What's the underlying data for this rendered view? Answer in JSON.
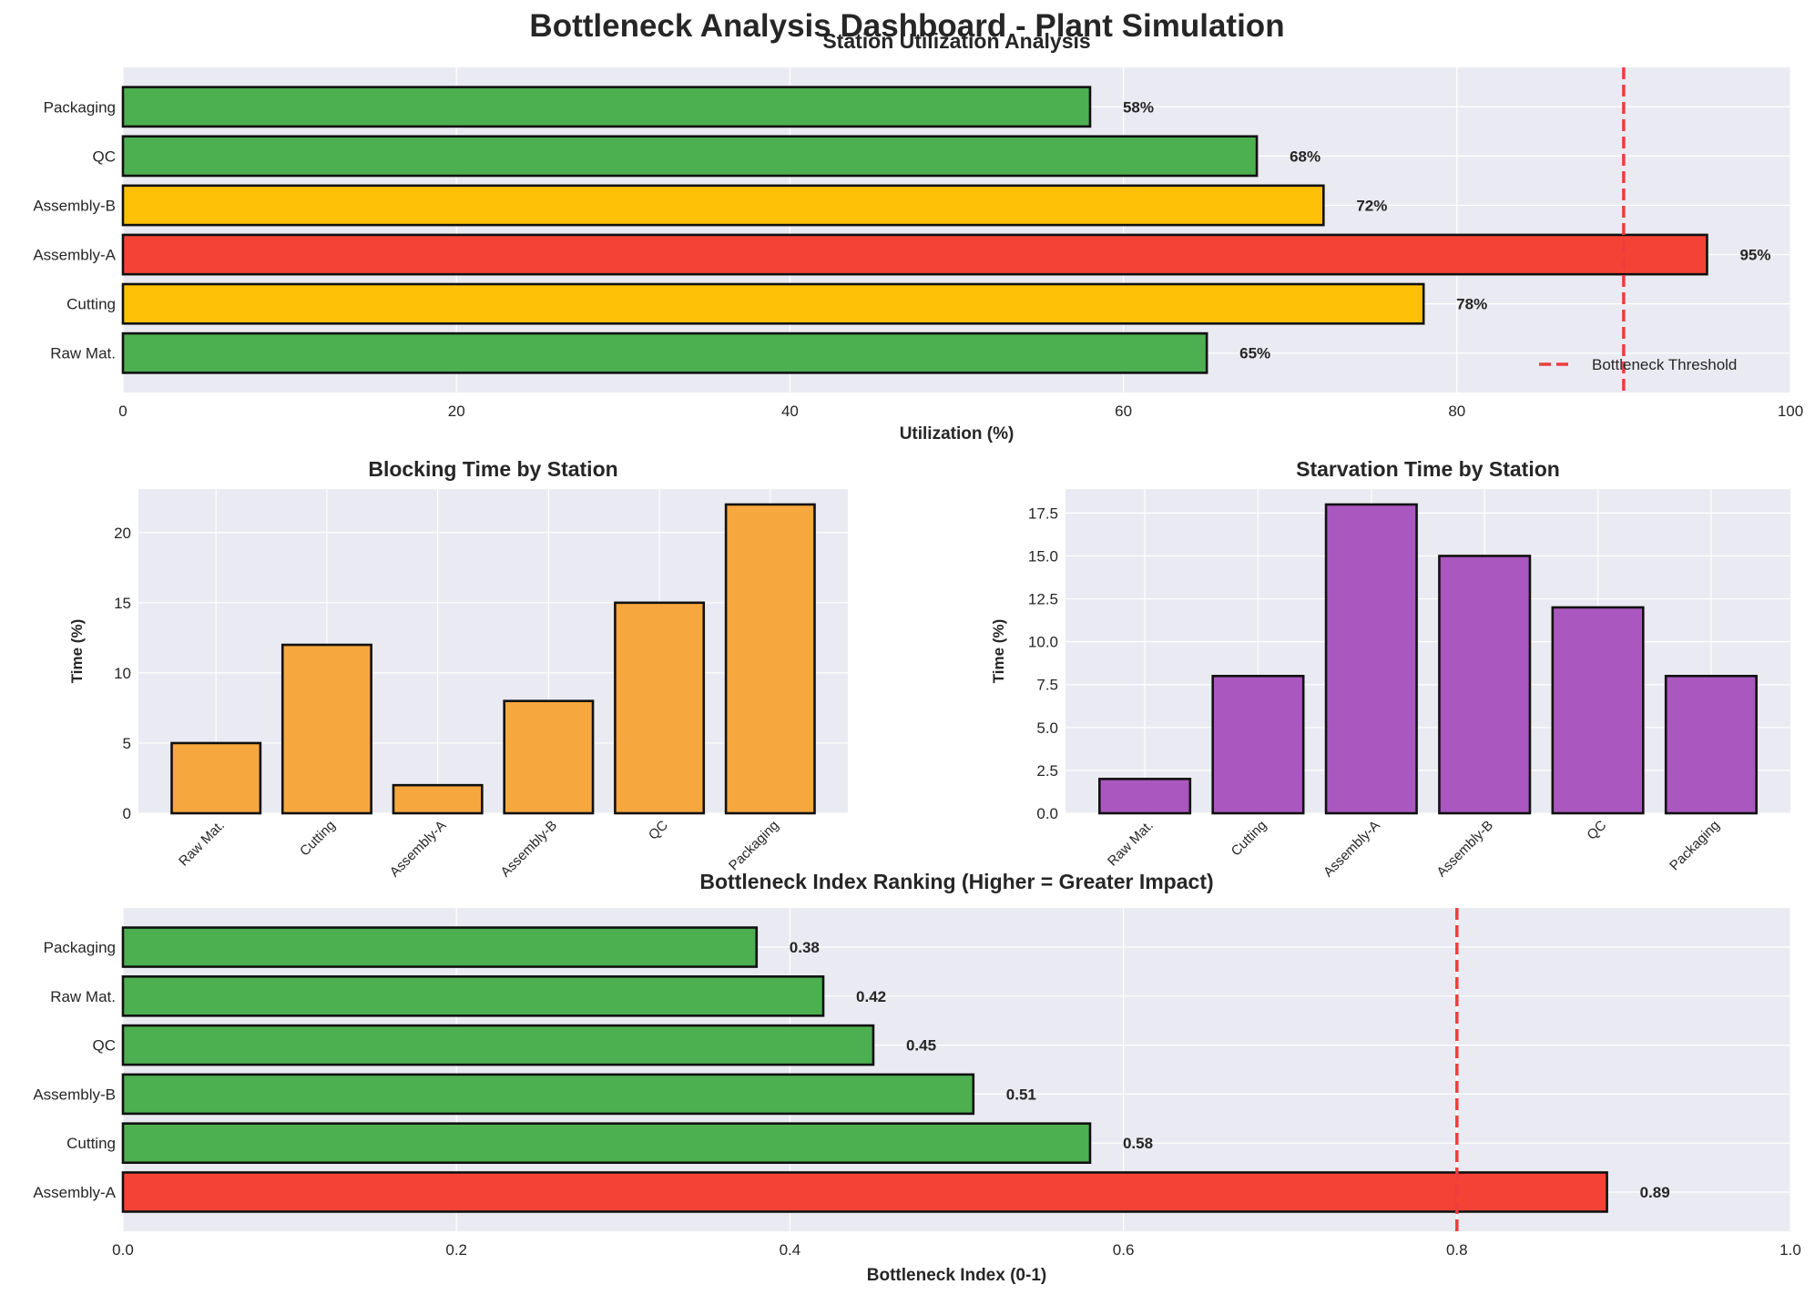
{
  "page": {
    "title": "Bottleneck Analysis Dashboard - Plant Simulation"
  },
  "colors": {
    "background": "#eaeaf2",
    "grid": "#ffffff",
    "ok": "#4caf50",
    "warning": "#ffc107",
    "critical": "#f44336",
    "blocking": "#f7a434",
    "starvation": "#a64fbd",
    "threshold_line": "#f03c3c",
    "bar_edge": "#111111"
  },
  "chart_data": [
    {
      "id": "utilization",
      "type": "bar",
      "orientation": "horizontal",
      "title": "Station Utilization Analysis",
      "xlabel": "Utilization (%)",
      "ylabel": "",
      "categories": [
        "Raw Mat.",
        "Cutting",
        "Assembly-A",
        "Assembly-B",
        "QC",
        "Packaging"
      ],
      "values": [
        65,
        78,
        95,
        72,
        68,
        58
      ],
      "value_labels": [
        "65%",
        "78%",
        "95%",
        "72%",
        "68%",
        "58%"
      ],
      "bar_colors": [
        "#4caf50",
        "#ffc107",
        "#f44336",
        "#ffc107",
        "#4caf50",
        "#4caf50"
      ],
      "xlim": [
        0,
        100
      ],
      "xticks": [
        0,
        20,
        40,
        60,
        80,
        100
      ],
      "xtick_labels": [
        "0",
        "20",
        "40",
        "60",
        "80",
        "100"
      ],
      "threshold": {
        "value": 90,
        "label": "Bottleneck Threshold"
      },
      "legend": {
        "position": "lower-right",
        "entries": [
          "Bottleneck Threshold"
        ]
      },
      "grid": true
    },
    {
      "id": "blocking",
      "type": "bar",
      "orientation": "vertical",
      "title": "Blocking Time by Station",
      "xlabel": "",
      "ylabel": "Time (%)",
      "categories": [
        "Raw Mat.",
        "Cutting",
        "Assembly-A",
        "Assembly-B",
        "QC",
        "Packaging"
      ],
      "values": [
        5,
        12,
        2,
        8,
        15,
        22
      ],
      "ylim": [
        0,
        23.1
      ],
      "yticks": [
        0,
        5,
        10,
        15,
        20
      ],
      "ytick_labels": [
        "0",
        "5",
        "10",
        "15",
        "20"
      ],
      "grid": true
    },
    {
      "id": "starvation",
      "type": "bar",
      "orientation": "vertical",
      "title": "Starvation Time by Station",
      "xlabel": "",
      "ylabel": "Time (%)",
      "categories": [
        "Raw Mat.",
        "Cutting",
        "Assembly-A",
        "Assembly-B",
        "QC",
        "Packaging"
      ],
      "values": [
        2,
        8,
        18,
        15,
        12,
        8
      ],
      "ylim": [
        0,
        18.9
      ],
      "yticks": [
        0,
        2.5,
        5,
        7.5,
        10,
        12.5,
        15,
        17.5
      ],
      "ytick_labels": [
        "0.0",
        "2.5",
        "5.0",
        "7.5",
        "10.0",
        "12.5",
        "15.0",
        "17.5"
      ],
      "grid": true
    },
    {
      "id": "ranking",
      "type": "bar",
      "orientation": "horizontal",
      "title": "Bottleneck Index Ranking (Higher = Greater Impact)",
      "xlabel": "Bottleneck Index (0-1)",
      "ylabel": "",
      "categories": [
        "Assembly-A",
        "Cutting",
        "Assembly-B",
        "QC",
        "Raw Mat.",
        "Packaging"
      ],
      "values": [
        0.89,
        0.58,
        0.51,
        0.45,
        0.42,
        0.38
      ],
      "value_labels": [
        "0.89",
        "0.58",
        "0.51",
        "0.45",
        "0.42",
        "0.38"
      ],
      "bar_colors": [
        "#f44336",
        "#4caf50",
        "#4caf50",
        "#4caf50",
        "#4caf50",
        "#4caf50"
      ],
      "xlim": [
        0,
        1
      ],
      "xticks": [
        0,
        0.2,
        0.4,
        0.6,
        0.8,
        1.0
      ],
      "xtick_labels": [
        "0.0",
        "0.2",
        "0.4",
        "0.6",
        "0.8",
        "1.0"
      ],
      "threshold": {
        "value": 0.8
      },
      "grid": true
    }
  ]
}
